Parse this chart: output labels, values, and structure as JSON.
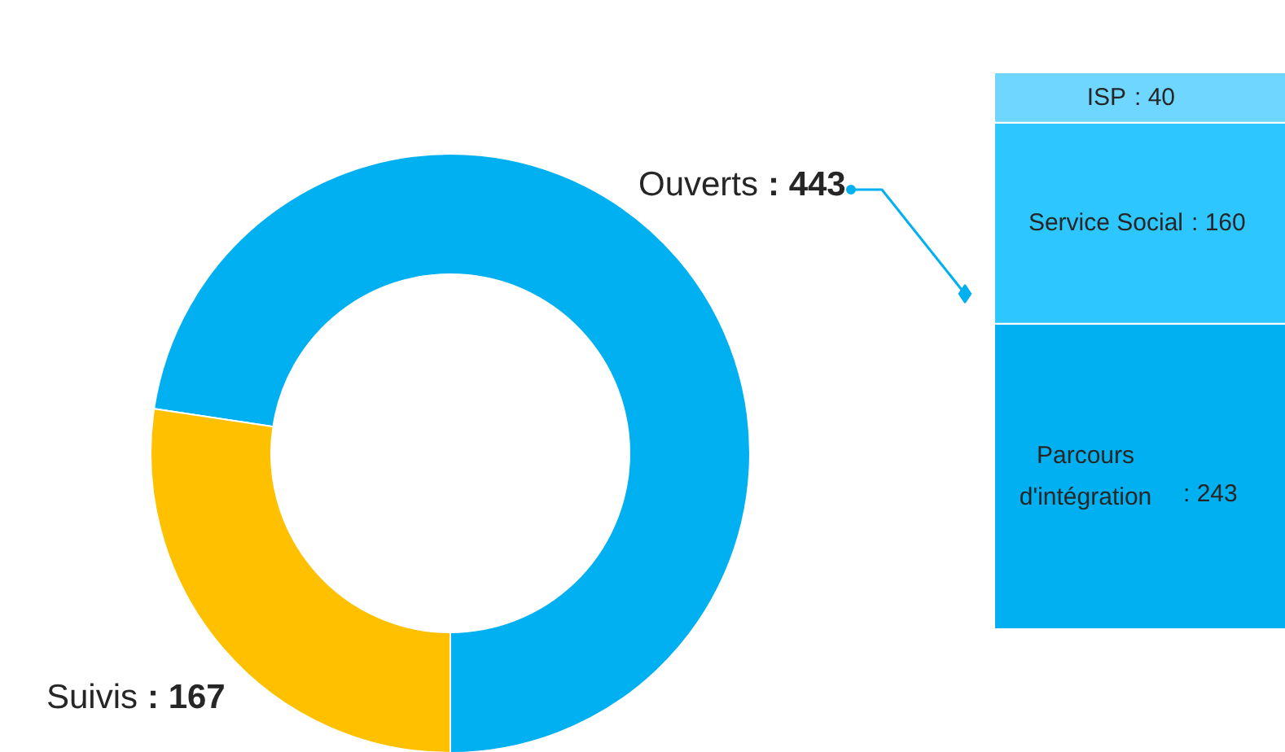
{
  "chart_data": [
    {
      "type": "donut",
      "categories": [
        "Ouverts",
        "Suivis"
      ],
      "values": [
        443,
        167
      ],
      "colors": [
        "#00b0f0",
        "#ffc000"
      ],
      "value_labels": [
        ": 443",
        ": 167"
      ]
    },
    {
      "type": "bar",
      "stacked": true,
      "categories": [
        null
      ],
      "series": [
        {
          "name": "Parcours\nd'intégration",
          "color": "#00b0f0",
          "values": [
            243
          ],
          "value_labels": [
            ": 243"
          ]
        },
        {
          "name": "Service Social",
          "color": "#2ec6ff",
          "values": [
            160
          ],
          "value_labels": [
            ": 160"
          ]
        },
        {
          "name": "ISP",
          "color": "#6fd7ff",
          "values": [
            40
          ],
          "value_labels": [
            ": 40"
          ]
        }
      ]
    }
  ]
}
